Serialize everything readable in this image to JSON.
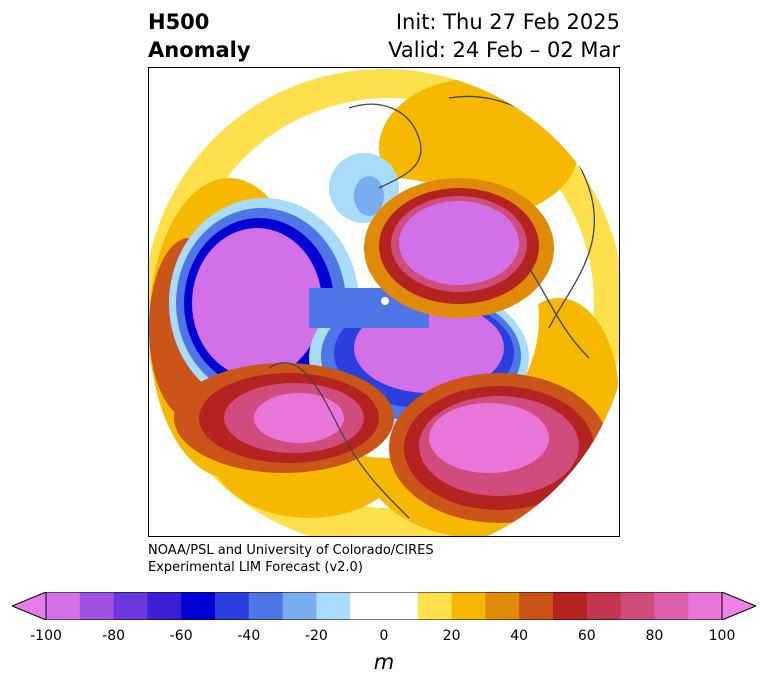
{
  "title": {
    "left_line1": "H500",
    "left_line2": "Anomaly",
    "init": "Init: Thu 27 Feb 2025",
    "valid": "Valid: 24 Feb – 02 Mar"
  },
  "credit": {
    "line1": "NOAA/PSL and University of Colorado/CIRES",
    "line2": "Experimental LIM Forecast (v2.0)"
  },
  "colorbar": {
    "unit": "m",
    "ticks": [
      "-100",
      "-80",
      "-60",
      "-40",
      "-20",
      "0",
      "20",
      "40",
      "60",
      "80",
      "100"
    ],
    "colors": [
      "#d270e8",
      "#a053e3",
      "#6b37de",
      "#3a1fd6",
      "#0000d4",
      "#2a3fde",
      "#4e76e6",
      "#78adf0",
      "#a9dcfb",
      "#ffffff",
      "#ffffff",
      "#fde04c",
      "#f6b800",
      "#e08a0a",
      "#cb5518",
      "#b42320",
      "#c2374f",
      "#cf4c7c",
      "#dc60ab",
      "#e975d9"
    ],
    "extend_low": "#e57ce8",
    "extend_high": "#ef80e6"
  },
  "map": {
    "projection": "polar-stereographic",
    "anomalies": [
      {
        "name": "negative-center-north-pacific",
        "value": -100
      },
      {
        "name": "negative-center-canada-arctic",
        "value": -100
      },
      {
        "name": "positive-center-siberia",
        "value": 100
      },
      {
        "name": "positive-center-western-us",
        "value": 90
      },
      {
        "name": "positive-center-north-atlantic",
        "value": 90
      },
      {
        "name": "positive-ring-mid-latitudes",
        "value": 20
      }
    ]
  }
}
